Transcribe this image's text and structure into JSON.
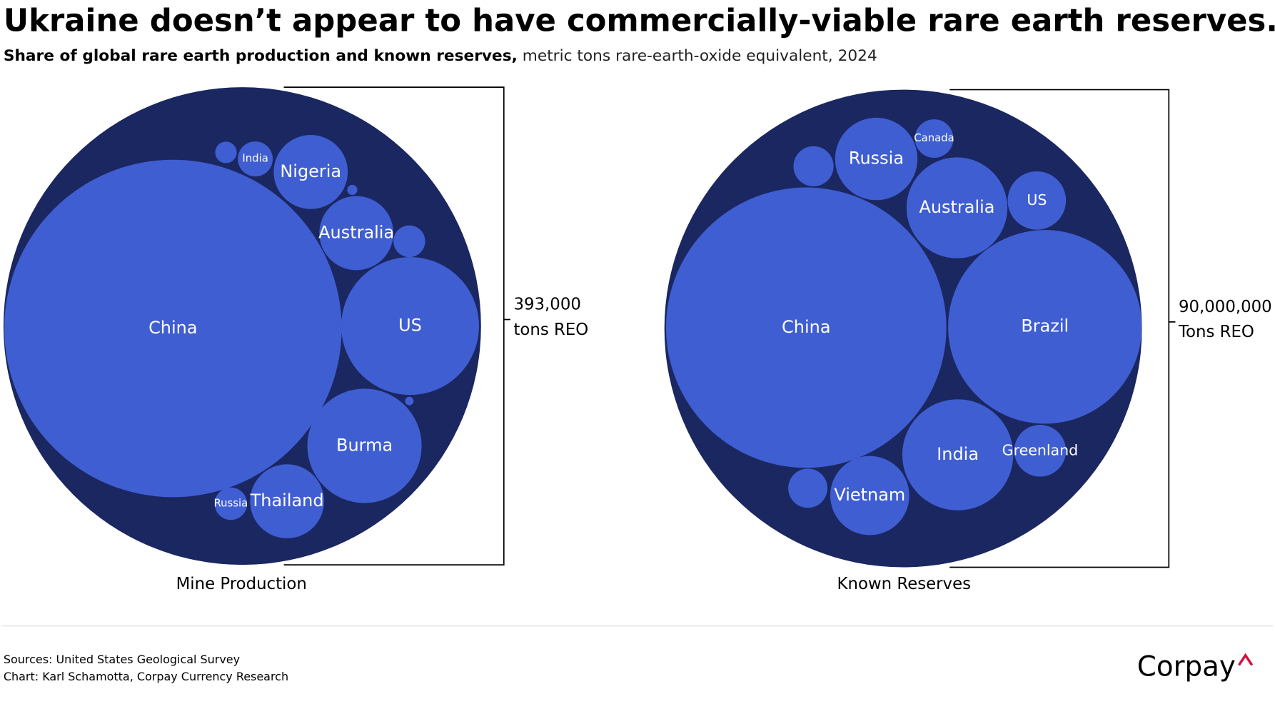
{
  "title": "Ukraine doesn’t appear to have commercially-viable rare earth reserves.",
  "subtitle_bold": "Share of global rare earth production and known reserves,",
  "subtitle": "metric tons rare-earth-oxide equivalent, 2024",
  "sources": [
    "Sources: United States Geological Survey",
    "Chart: Karl Schamotta, Corpay Currency Research"
  ],
  "logo": "Corpay",
  "chart_data": [
    {
      "type": "bubble",
      "title": "Mine Production",
      "categories": [
        "China",
        "US",
        "Burma",
        "Thailand",
        "Russia",
        "Australia",
        "Nigeria",
        "India",
        null,
        null,
        null,
        null
      ],
      "values": [
        270000,
        45000,
        31000,
        13000,
        2500,
        13000,
        13000,
        2900,
        1100,
        240,
        2400,
        170
      ],
      "total": {
        "value": 393000,
        "label": "393,000"
      },
      "total_unit": "tons REO",
      "color": "#3f5ed2",
      "background_color": "#1b2760"
    },
    {
      "type": "bubble",
      "title": "Known Reserves",
      "categories": [
        "China",
        "Brazil",
        "India",
        "Vietnam",
        "Greenland",
        "US",
        "Australia",
        "Russia",
        "Canada",
        null,
        null
      ],
      "values": [
        44000000,
        21000000,
        6900000,
        3500000,
        1500000,
        1900000,
        5700000,
        3800000,
        830000,
        900000,
        860000
      ],
      "total": {
        "value": 90000000,
        "label": "90,000,000"
      },
      "total_unit": "Tons REO",
      "color": "#3f5ed2",
      "background_color": "#1b2760"
    }
  ]
}
